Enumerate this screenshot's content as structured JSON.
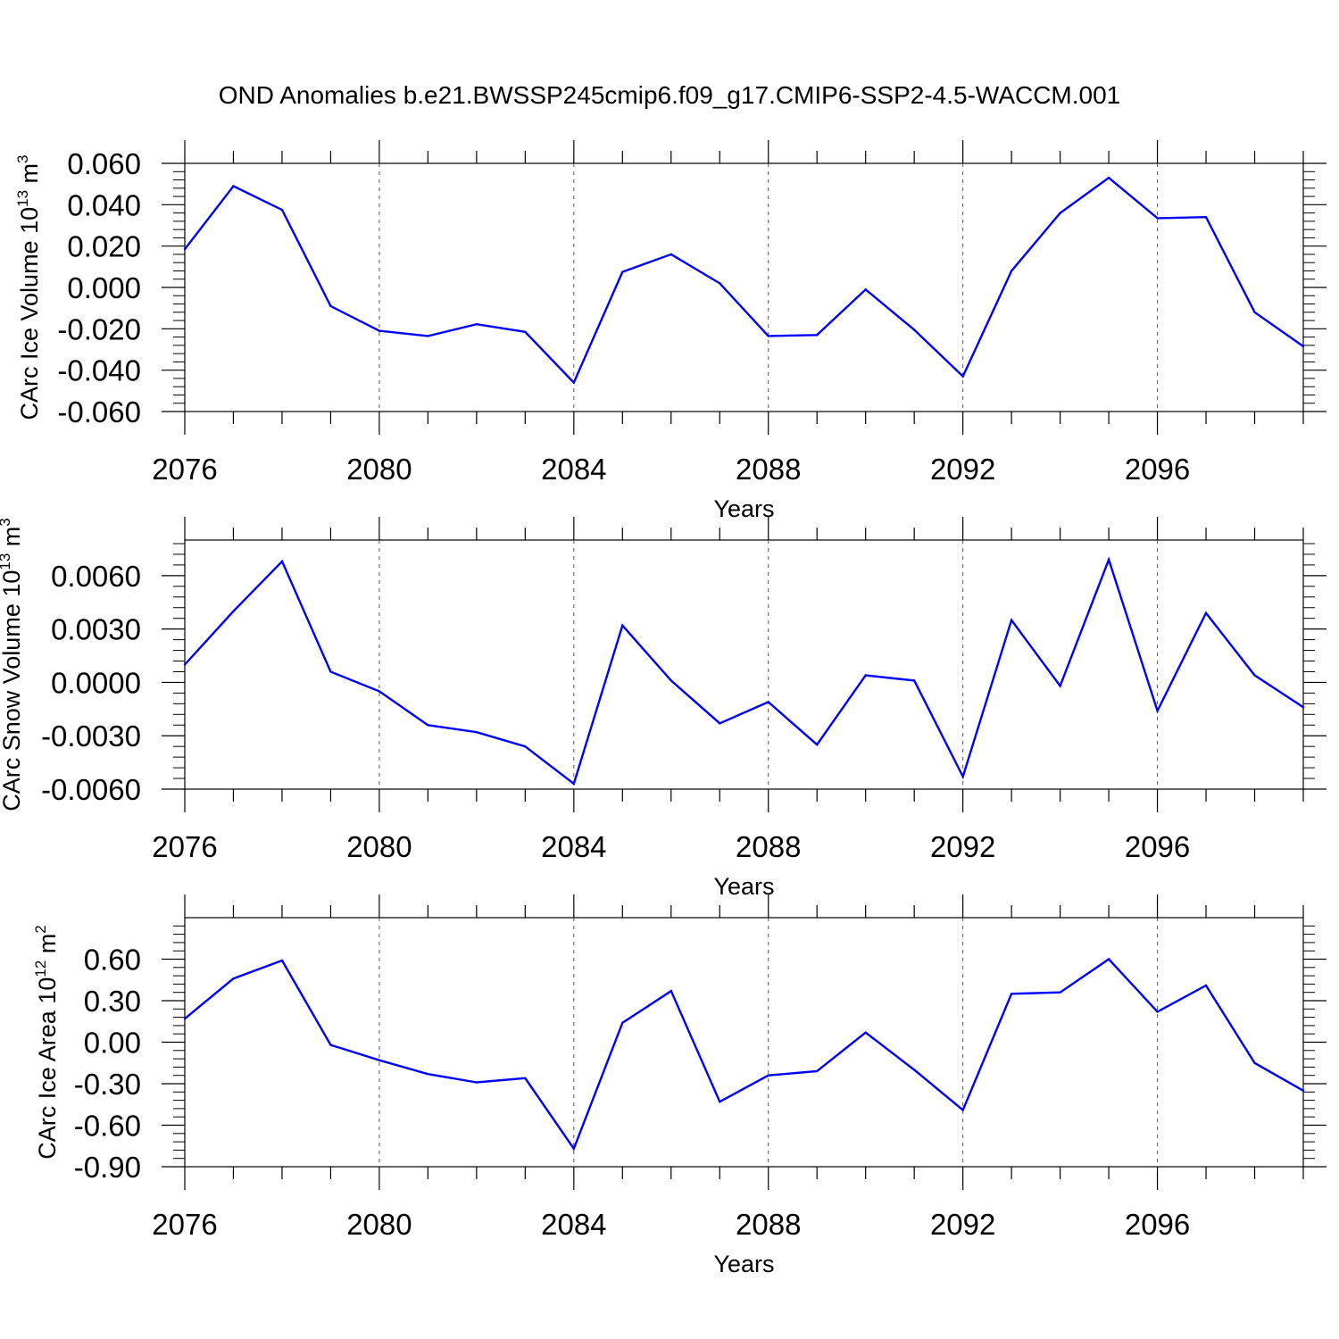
{
  "title": "OND Anomalies b.e21.BWSSP245cmip6.f09_g17.CMIP6-SSP2-4.5-WACCM.001",
  "colors": {
    "series": "#0000ff",
    "axis": "#000000",
    "grid": "#555555"
  },
  "chart_data": [
    {
      "type": "line",
      "ylabel": {
        "main": "CArc Ice Volume 10",
        "sup": "13",
        "unit": " m",
        "unit_sup": "3"
      },
      "xlabel": "Years",
      "xlim": [
        2076,
        2099
      ],
      "ylim": [
        -0.06,
        0.06
      ],
      "xticks": [
        "2076",
        "2080",
        "2084",
        "2088",
        "2092",
        "2096"
      ],
      "yticks": [
        "-0.060",
        "-0.040",
        "-0.020",
        "0.000",
        "0.020",
        "0.040",
        "0.060"
      ],
      "grid": "dashed vertical at major x ticks",
      "x": [
        2076,
        2077,
        2078,
        2079,
        2080,
        2081,
        2082,
        2083,
        2084,
        2085,
        2086,
        2087,
        2088,
        2089,
        2090,
        2091,
        2092,
        2093,
        2094,
        2095,
        2096,
        2097,
        2098,
        2099
      ],
      "y": [
        0.0185,
        0.049,
        0.0375,
        -0.009,
        -0.021,
        -0.0235,
        -0.0178,
        -0.0215,
        -0.046,
        0.0075,
        0.016,
        0.002,
        -0.0235,
        -0.023,
        -0.001,
        -0.0205,
        -0.043,
        0.008,
        0.036,
        0.053,
        0.0335,
        0.034,
        -0.012,
        -0.0285
      ]
    },
    {
      "type": "line",
      "ylabel": {
        "main": "CArc Snow Volume 10",
        "sup": "13",
        "unit": " m",
        "unit_sup": "3"
      },
      "xlabel": "Years",
      "xlim": [
        2076,
        2099
      ],
      "ylim": [
        -0.006,
        0.008
      ],
      "xticks": [
        "2076",
        "2080",
        "2084",
        "2088",
        "2092",
        "2096"
      ],
      "yticks": [
        "-0.0060",
        "-0.0030",
        "0.0000",
        "0.0030",
        "0.0060"
      ],
      "grid": "dashed vertical at major x ticks",
      "x": [
        2076,
        2077,
        2078,
        2079,
        2080,
        2081,
        2082,
        2083,
        2084,
        2085,
        2086,
        2087,
        2088,
        2089,
        2090,
        2091,
        2092,
        2093,
        2094,
        2095,
        2096,
        2097,
        2098,
        2099
      ],
      "y": [
        0.001,
        0.004,
        0.0068,
        0.0006,
        -0.0005,
        -0.0024,
        -0.0028,
        -0.0036,
        -0.0057,
        0.0032,
        0.0001,
        -0.0023,
        -0.0011,
        -0.0035,
        0.0004,
        0.0001,
        -0.0053,
        0.0035,
        -0.0002,
        0.0069,
        -0.0016,
        0.0039,
        0.0004,
        -0.0014
      ]
    },
    {
      "type": "line",
      "ylabel": {
        "main": "CArc Ice Area 10",
        "sup": "12",
        "unit": " m",
        "unit_sup": "2"
      },
      "xlabel": "Years",
      "xlim": [
        2076,
        2099
      ],
      "ylim": [
        -0.9,
        0.9
      ],
      "xticks": [
        "2076",
        "2080",
        "2084",
        "2088",
        "2092",
        "2096"
      ],
      "yticks": [
        "-0.90",
        "-0.60",
        "-0.30",
        "0.00",
        "0.30",
        "0.60"
      ],
      "grid": "dashed vertical at major x ticks",
      "x": [
        2076,
        2077,
        2078,
        2079,
        2080,
        2081,
        2082,
        2083,
        2084,
        2085,
        2086,
        2087,
        2088,
        2089,
        2090,
        2091,
        2092,
        2093,
        2094,
        2095,
        2096,
        2097,
        2098,
        2099
      ],
      "y": [
        0.17,
        0.46,
        0.59,
        -0.02,
        -0.13,
        -0.23,
        -0.29,
        -0.26,
        -0.77,
        0.14,
        0.37,
        -0.43,
        -0.24,
        -0.21,
        0.07,
        -0.2,
        -0.49,
        0.35,
        0.36,
        0.6,
        0.22,
        0.41,
        -0.15,
        -0.35
      ]
    }
  ]
}
